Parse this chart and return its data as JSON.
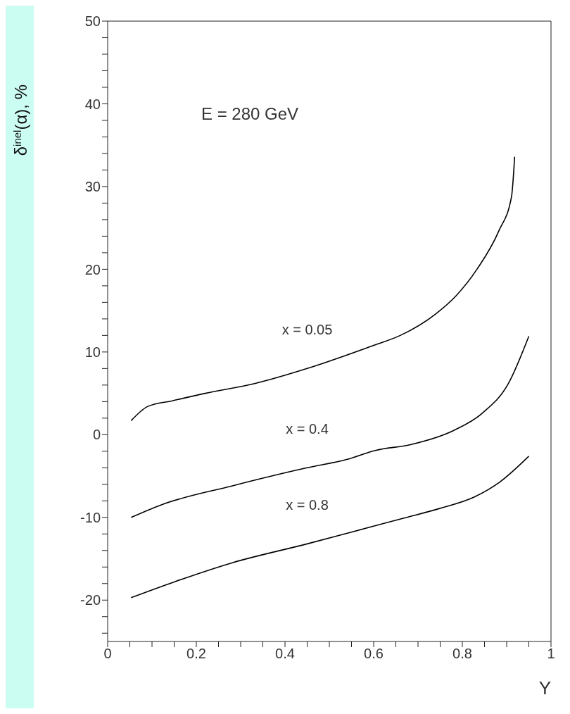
{
  "chart_data": {
    "type": "line",
    "ylabel": "δ$^{inel}$(α), %",
    "xlabel": "Y",
    "annotations": [
      "E = 280 GeV"
    ],
    "xlim": [
      0,
      1
    ],
    "ylim": [
      -25,
      50
    ],
    "xticks": [
      0,
      {
        "value": 0.05,
        "label": null
      },
      {
        "value": 0.1,
        "label": null
      },
      {
        "value": 0.15,
        "label": null
      },
      0.2,
      {
        "value": 0.25,
        "label": null
      },
      {
        "value": 0.3,
        "label": null
      },
      {
        "value": 0.35,
        "label": null
      },
      0.4,
      {
        "value": 0.45,
        "label": null
      },
      {
        "value": 0.5,
        "label": null
      },
      {
        "value": 0.55,
        "label": null
      },
      0.6,
      {
        "value": 0.65,
        "label": null
      },
      {
        "value": 0.7,
        "label": null
      },
      {
        "value": 0.75,
        "label": null
      },
      0.8,
      {
        "value": 0.85,
        "label": null
      },
      {
        "value": 0.9,
        "label": null
      },
      {
        "value": 0.95,
        "label": null
      },
      1
    ],
    "yticks": [
      {
        "value": -24,
        "label": null
      },
      {
        "value": -22,
        "label": null
      },
      -20,
      {
        "value": -18,
        "label": null
      },
      {
        "value": -16,
        "label": null
      },
      {
        "value": -14,
        "label": null
      },
      {
        "value": -12,
        "label": null
      },
      -10,
      {
        "value": -8,
        "label": null
      },
      {
        "value": -6,
        "label": null
      },
      {
        "value": -4,
        "label": null
      },
      {
        "value": -2,
        "label": null
      },
      0,
      {
        "value": 2,
        "label": null
      },
      {
        "value": 4,
        "label": null
      },
      {
        "value": 6,
        "label": null
      },
      {
        "value": 8,
        "label": null
      },
      10,
      {
        "value": 12,
        "label": null
      },
      {
        "value": 14,
        "label": null
      },
      {
        "value": 16,
        "label": null
      },
      {
        "value": 18,
        "label": null
      },
      20,
      {
        "value": 22,
        "label": null
      },
      {
        "value": 24,
        "label": null
      },
      {
        "value": 26,
        "label": null
      },
      {
        "value": 28,
        "label": null
      },
      30,
      {
        "value": 32,
        "label": null
      },
      {
        "value": 34,
        "label": null
      },
      {
        "value": 36,
        "label": null
      },
      {
        "value": 38,
        "label": null
      },
      40,
      {
        "value": 42,
        "label": null
      },
      {
        "value": 44,
        "label": null
      },
      {
        "value": 46,
        "label": null
      },
      {
        "value": 48,
        "label": null
      },
      50
    ],
    "marker": "none",
    "line_style": "solid",
    "series": [
      {
        "name": "x = 0.05",
        "color": "#000000",
        "x": [
          0.053,
          0.09,
          0.146,
          0.22,
          0.333,
          0.45,
          0.6,
          0.66,
          0.74,
          0.786,
          0.833,
          0.882,
          0.911,
          0.918
        ],
        "values": [
          1.7,
          3.4,
          4.1,
          5.0,
          6.2,
          8.0,
          10.8,
          12.0,
          14.6,
          16.8,
          20.0,
          24.6,
          28.8,
          33.6
        ]
      },
      {
        "name": "x = 0.4",
        "color": "#000000",
        "x": [
          0.053,
          0.12,
          0.28,
          0.45,
          0.539,
          0.604,
          0.683,
          0.78,
          0.845,
          0.903,
          0.95
        ],
        "values": [
          -10.0,
          -8.5,
          -6.2,
          -4.0,
          -3.0,
          -1.9,
          -1.2,
          0.5,
          2.6,
          6.1,
          11.9
        ]
      },
      {
        "name": "x = 0.8",
        "color": "#000000",
        "x": [
          0.053,
          0.15,
          0.28,
          0.45,
          0.604,
          0.667,
          0.75,
          0.828,
          0.885,
          0.95
        ],
        "values": [
          -19.7,
          -17.8,
          -15.5,
          -13.2,
          -11.0,
          -10.1,
          -8.9,
          -7.5,
          -5.7,
          -2.6
        ]
      }
    ]
  }
}
